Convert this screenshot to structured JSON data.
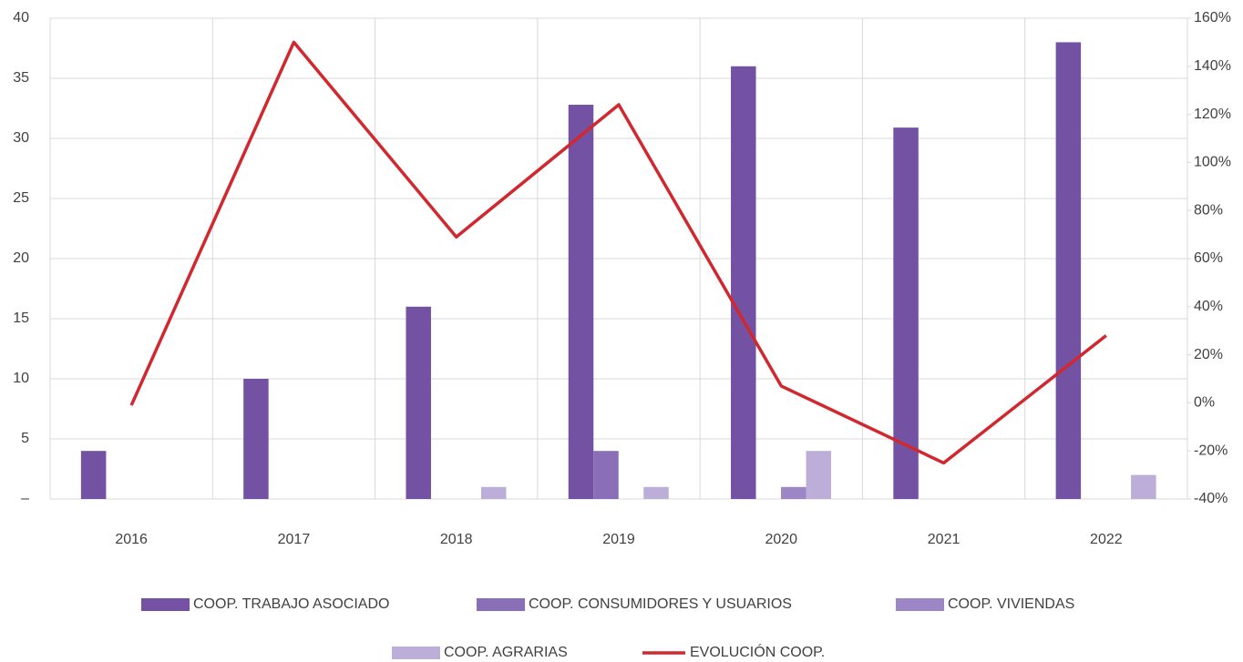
{
  "chart_data": {
    "type": "bar",
    "categories": [
      "2016",
      "2017",
      "2018",
      "2019",
      "2020",
      "2021",
      "2022"
    ],
    "series": [
      {
        "name": "COOP. TRABAJO ASOCIADO",
        "color": "#7352a3",
        "values": [
          4,
          10,
          16,
          32.8,
          36,
          30.9,
          38
        ]
      },
      {
        "name": "COOP. CONSUMIDORES Y USUARIOS",
        "color": "#8a6fb8",
        "values": [
          0,
          0,
          0,
          4,
          0,
          0,
          0
        ]
      },
      {
        "name": "COOP. VIVIENDAS",
        "color": "#9c86c6",
        "values": [
          0,
          0,
          0,
          0,
          1,
          0,
          0
        ]
      },
      {
        "name": "COOP. AGRARIAS",
        "color": "#bcaed8",
        "values": [
          0,
          0,
          1,
          1,
          4,
          0,
          2
        ]
      },
      {
        "name": "EVOLUCIÓN COOP.",
        "color": "#d0282e",
        "type": "line",
        "axis": "y2",
        "values": [
          -1,
          150,
          69,
          124,
          7,
          -25,
          28
        ]
      }
    ],
    "ylim": [
      0,
      40
    ],
    "yticks": [
      {
        "value": 0,
        "label": "–"
      },
      5,
      10,
      15,
      20,
      25,
      30,
      35,
      40
    ],
    "y2lim": [
      -40,
      160
    ],
    "y2ticks": [
      {
        "value": -40,
        "label": "-40%"
      },
      {
        "value": -20,
        "label": "-20%"
      },
      {
        "value": 0,
        "label": "0%"
      },
      {
        "value": 20,
        "label": "20%"
      },
      {
        "value": 40,
        "label": "40%"
      },
      {
        "value": 60,
        "label": "60%"
      },
      {
        "value": 80,
        "label": "80%"
      },
      {
        "value": 100,
        "label": "100%"
      },
      {
        "value": 120,
        "label": "120%"
      },
      {
        "value": 140,
        "label": "140%"
      },
      {
        "value": 160,
        "label": "160%"
      }
    ],
    "grid": true,
    "legend": "bottom"
  }
}
